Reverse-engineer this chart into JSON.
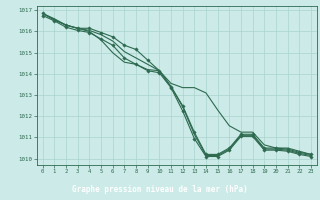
{
  "bg_color": "#cceae7",
  "grid_color": "#aad4ce",
  "line_color": "#2d6a4f",
  "marker_color": "#2d6a4f",
  "xlabel": "Graphe pression niveau de la mer (hPa)",
  "xlabel_color": "#ffffff",
  "xlabel_bg": "#2d6a4f",
  "tick_color": "#2d6a4f",
  "ylim": [
    1009.7,
    1017.2
  ],
  "xlim": [
    -0.5,
    23.5
  ],
  "yticks": [
    1010,
    1011,
    1012,
    1013,
    1014,
    1015,
    1016,
    1017
  ],
  "xticks": [
    0,
    1,
    2,
    3,
    4,
    5,
    6,
    7,
    8,
    9,
    10,
    11,
    12,
    13,
    14,
    15,
    16,
    17,
    18,
    19,
    20,
    21,
    22,
    23
  ],
  "series": [
    [
      1016.85,
      1016.55,
      1016.3,
      1016.15,
      1016.15,
      1015.95,
      1015.75,
      1015.35,
      1015.15,
      1014.65,
      1014.15,
      1013.4,
      1012.5,
      1011.25,
      1010.2,
      1010.2,
      1010.5,
      1011.15,
      1011.15,
      1010.5,
      1010.5,
      1010.45,
      1010.3,
      1010.2
    ],
    [
      1016.85,
      1016.55,
      1016.3,
      1016.15,
      1016.05,
      1015.85,
      1015.55,
      1015.05,
      1014.75,
      1014.45,
      1014.15,
      1013.4,
      1012.45,
      1011.15,
      1010.15,
      1010.15,
      1010.45,
      1011.1,
      1011.1,
      1010.45,
      1010.45,
      1010.4,
      1010.25,
      1010.15
    ],
    [
      1016.75,
      1016.5,
      1016.2,
      1016.05,
      1015.95,
      1015.65,
      1015.35,
      1014.75,
      1014.45,
      1014.15,
      1014.05,
      1013.35,
      1012.25,
      1010.95,
      1010.1,
      1010.1,
      1010.4,
      1011.05,
      1011.05,
      1010.4,
      1010.4,
      1010.35,
      1010.2,
      1010.1
    ]
  ],
  "series2_diverge": [
    1016.85,
    1016.6,
    1016.3,
    1016.15,
    1016.0,
    1015.6,
    1015.0,
    1014.55,
    1014.45,
    1014.2,
    1014.15,
    1013.55,
    1013.35,
    1013.35,
    1013.1,
    1012.3,
    1011.55,
    1011.25,
    1011.25,
    1010.65,
    1010.5,
    1010.5,
    1010.35,
    1010.2
  ]
}
